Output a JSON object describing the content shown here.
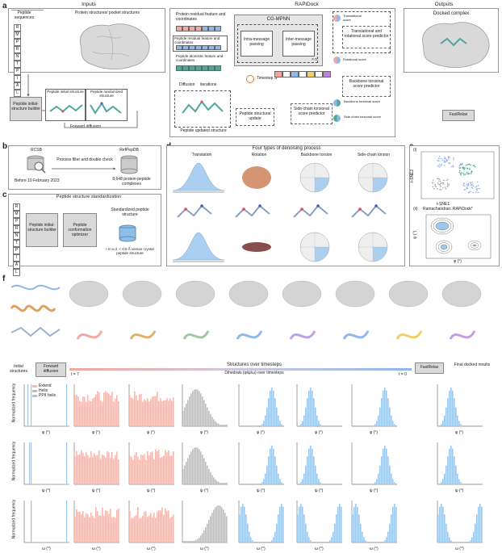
{
  "panels": {
    "a": "a",
    "b": "b",
    "c": "c",
    "d": "d",
    "e": "e",
    "f": "f"
  },
  "a": {
    "inputs_header": "Inputs",
    "rapidock_header": "RAPiDock",
    "outputs_header": "Outputs",
    "peptide_sequences": "Peptide sequences",
    "protein_structures": "Protein structures/ pocket structures",
    "sequence": [
      "R",
      "M",
      "P",
      "R",
      "N",
      "T",
      "P",
      "I",
      "A",
      "L"
    ],
    "builder": "Peptide initial-structure builder",
    "initial_structure": "Peptide initial structure",
    "randomized_structure": "Peptide randomized structure",
    "forward_diffusion": "Forward diffusion",
    "protein_feat": "Protein residual feature and coordinates",
    "peptide_res_feat": "Peptide residual feature and coordinates",
    "peptide_atom_feat": "Peptide atomistic feature and coordinates",
    "cgmpnn": "CG-MPNN",
    "intra": "Intra-message passing",
    "inter": "Inter-message passing",
    "xn": "× n",
    "diffusion": "Diffusion",
    "iterations": "iterations",
    "timestep": "Timestep S",
    "translational_score": "Translational score",
    "rotational_score": "Rotational score",
    "trans_rot_predictor": "Translational and rotational score predictor",
    "backbone_torsion": "Backbone torsion",
    "backbone_predictor": "Backbone torsional score predictor",
    "sidechain_predictor": "Side-chain torsional score predictor",
    "backbone_torsion_score": "Backbone torsional score",
    "sidechain_torsion_score": "Side-chain torsional score",
    "structural_update": "Peptide structural update",
    "updated_structure": "Peptide updated structure",
    "docked_complex": "Docked complex",
    "fastrelax": "FastRelax"
  },
  "b": {
    "rcsb": "RCSB",
    "refpepdb": "RefPepDB",
    "process": "Process filter and double check",
    "before": "Before 10 February 2023",
    "complexes": "8,648 protein-peptide complexes"
  },
  "c": {
    "title": "Peptide structure standardization",
    "sequence": [
      "R",
      "M",
      "P",
      "R",
      "N",
      "T",
      "P",
      "I",
      "A",
      "L"
    ],
    "builder": "Peptide initial-structure builder",
    "optimizer": "Peptide conformation optimizer",
    "standardized": "Standardized peptide structure",
    "rmsd": "r.m.s.d. < 0.5 Å versus crystal peptide structure"
  },
  "d": {
    "title": "Four types of denoising process",
    "types": [
      "Translation",
      "Rotation",
      "Backbone torsion",
      "Side-chain torsion"
    ],
    "polar_ticks_top": [
      "0°",
      "45°",
      "90°",
      "135°",
      "180°",
      "-45°",
      "-90°",
      "-135°"
    ]
  },
  "e": {
    "i": "(i)",
    "ii": "(ii)",
    "tsne1": "t-SNE1",
    "tsne2": "t-SNE2",
    "rama": "Ramachandran: RAPiDock*",
    "phi": "φ (°)",
    "psi": "ψ (°)"
  },
  "f": {
    "initial_structures": "Initial structures",
    "forward_diffusion": "Forward diffusion",
    "structures_over": "Structures over timesteps",
    "dihedrals_over": "Dihedrals (φ/ψ/ω) over timesteps",
    "t7": "t = 7",
    "t0": "t = 0",
    "fastrelax": "FastRelax",
    "final": "Final docked results",
    "legend": [
      "Extend",
      "Helix",
      "PPII helix"
    ],
    "ylabel": "Normalized frequency",
    "row_xlabels": [
      "φ (°)",
      "ψ (°)",
      "ω (°)"
    ]
  },
  "colors": {
    "pink": "#f4b9b0",
    "blue": "#9cc7ee",
    "gray": "#bdbdbd",
    "teal": "#4ea99a",
    "box": "#d9d9d9"
  }
}
